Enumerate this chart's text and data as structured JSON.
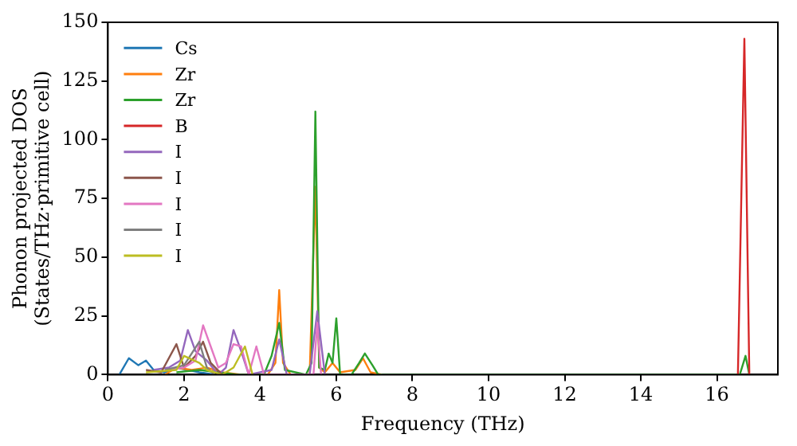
{
  "chart_data": {
    "type": "line",
    "xlabel": "Frequency (THz)",
    "ylabel": "Phonon projected DOS\n(States/THz·primitive cell)",
    "xlim": [
      0,
      17.6
    ],
    "ylim": [
      0,
      150
    ],
    "xticks": [
      0,
      2,
      4,
      6,
      8,
      10,
      12,
      14,
      16
    ],
    "yticks": [
      0,
      25,
      50,
      75,
      100,
      125,
      150
    ],
    "grid": false,
    "legend": "top left",
    "marker": "none",
    "line_style": "solid",
    "series": [
      {
        "name": "Cs",
        "color": "#1f77b4",
        "x": [
          0.3,
          0.55,
          0.8,
          1.0,
          1.2,
          1.5,
          1.8,
          2.1,
          2.4,
          2.8
        ],
        "values": [
          0,
          7,
          4,
          6,
          2,
          1,
          3,
          2,
          1,
          0
        ]
      },
      {
        "name": "Zr",
        "color": "#ff7f0e",
        "x": [
          1.5,
          1.8,
          2.2,
          2.6,
          3.0,
          3.5,
          4.2,
          4.4,
          4.5,
          4.6,
          4.8,
          5.3,
          5.45,
          5.55,
          5.7,
          5.9,
          6.1,
          6.5,
          6.7,
          6.9,
          7.2
        ],
        "values": [
          0,
          3,
          2,
          3,
          1,
          0,
          0,
          5,
          36,
          5,
          0,
          0,
          80,
          3,
          1,
          5,
          1,
          2,
          7,
          1,
          0
        ]
      },
      {
        "name": "Zr",
        "color": "#2ca02c",
        "x": [
          1.8,
          2.4,
          3.4,
          4.1,
          4.3,
          4.5,
          4.65,
          5.2,
          5.35,
          5.45,
          5.55,
          5.7,
          5.8,
          5.9,
          6.0,
          6.1,
          6.4,
          6.6,
          6.75,
          6.95,
          7.1,
          16.6,
          16.75,
          16.85
        ],
        "values": [
          1,
          2,
          0,
          0,
          8,
          22,
          2,
          0,
          5,
          112,
          3,
          2,
          9,
          5,
          24,
          0,
          0,
          5,
          9,
          4,
          0,
          0,
          8,
          0
        ]
      },
      {
        "name": "B",
        "color": "#d62728",
        "x": [
          16.55,
          16.72,
          16.85
        ],
        "values": [
          0,
          143,
          0
        ]
      },
      {
        "name": "I",
        "color": "#9467bd",
        "x": [
          1.2,
          1.6,
          1.9,
          2.1,
          2.3,
          2.6,
          2.9,
          3.1,
          3.3,
          3.5,
          3.7,
          4.3,
          4.5,
          4.7,
          5.3,
          5.5,
          5.7
        ],
        "values": [
          2,
          3,
          6,
          19,
          10,
          6,
          0,
          3,
          19,
          10,
          0,
          2,
          15,
          0,
          0,
          27,
          0
        ]
      },
      {
        "name": "I",
        "color": "#8c564b",
        "x": [
          1.0,
          1.4,
          1.8,
          2.0,
          2.3,
          2.5,
          2.7,
          3.0
        ],
        "values": [
          2,
          1,
          13,
          3,
          8,
          14,
          5,
          0
        ]
      },
      {
        "name": "I",
        "color": "#e377c2",
        "x": [
          1.5,
          2.0,
          2.3,
          2.5,
          2.7,
          2.9,
          3.1,
          3.3,
          3.5,
          3.7,
          3.9,
          4.1,
          5.4,
          5.5,
          5.6
        ],
        "values": [
          2,
          3,
          6,
          21,
          12,
          3,
          5,
          13,
          12,
          0,
          12,
          0,
          0,
          22,
          0
        ]
      },
      {
        "name": "I",
        "color": "#7f7f7f",
        "x": [
          1.5,
          2.0,
          2.2,
          2.4,
          2.6,
          2.8
        ],
        "values": [
          2,
          4,
          9,
          14,
          3,
          0
        ]
      },
      {
        "name": "I",
        "color": "#bcbd22",
        "x": [
          1.0,
          1.8,
          2.0,
          2.4,
          2.6,
          3.0,
          3.3,
          3.6,
          3.8
        ],
        "values": [
          1,
          2,
          8,
          5,
          2,
          0,
          3,
          12,
          0
        ]
      }
    ]
  }
}
